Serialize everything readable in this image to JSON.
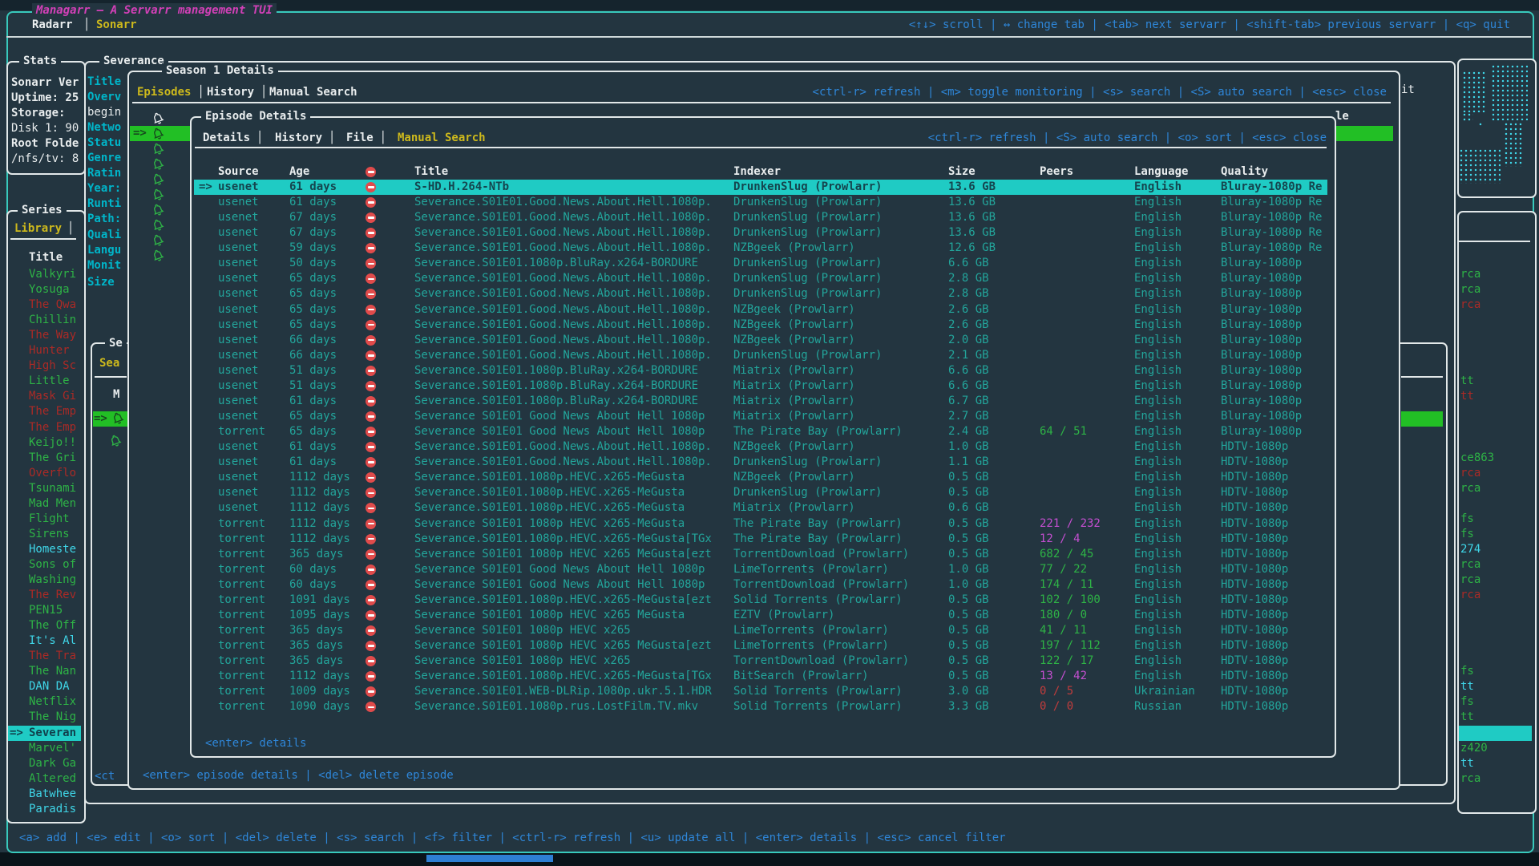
{
  "app": {
    "title": "Managarr — A Servarr management TUI",
    "tabs": [
      {
        "label": "Radarr"
      },
      {
        "label": "Sonarr"
      }
    ],
    "active_tab": "Sonarr",
    "tab_divider": "│",
    "top_keybinds": "<↑↓> scroll | ↔ change tab | <tab> next servarr | <shift-tab> previous servarr | <q> quit",
    "bottom_keybinds": "<a> add | <e> edit | <o> sort | <del> delete | <s> search | <f> filter | <ctrl-r> refresh | <u> update all | <enter> details | <esc> cancel filter"
  },
  "colors": {
    "accent_teal_frame": "#38c9bc",
    "window_border": "#e2e8e9",
    "keybind_blue": "#2e86d8",
    "selected_row_bg": "#1fcbc4",
    "monitored_green": "#2eb346",
    "unmonitored_red": "#ab2a26",
    "highlight_green_bg": "#22bf25",
    "label_cyan": "#00b5c9",
    "tab_yellow": "#cdb91c",
    "title_magenta": "#d340b8",
    "table_text_teal": "#23a59b"
  },
  "stats": {
    "title": "Stats",
    "lines": [
      {
        "text": "Sonarr Ver",
        "bold": true
      },
      {
        "text": "Uptime: 25",
        "bold": true
      },
      {
        "text": "Storage:",
        "bold": true
      },
      {
        "text": "Disk 1: 90",
        "bold": false
      },
      {
        "text": "Root Folde",
        "bold": true
      },
      {
        "text": "/nfs/tv: 8",
        "bold": false
      }
    ]
  },
  "series": {
    "title": "Series",
    "tab": "Library",
    "tab_divider": "│",
    "column_header": "Title",
    "selected_prefix": "=>",
    "selected_index": 30,
    "items": [
      {
        "label": "Valkyri",
        "color": "green"
      },
      {
        "label": "Yosuga",
        "color": "green"
      },
      {
        "label": "The Qwa",
        "color": "red"
      },
      {
        "label": "Chillin",
        "color": "green"
      },
      {
        "label": "The Way",
        "color": "red"
      },
      {
        "label": "Hunter",
        "color": "red"
      },
      {
        "label": "High Sc",
        "color": "red"
      },
      {
        "label": "Little",
        "color": "green"
      },
      {
        "label": "Mask Gi",
        "color": "red"
      },
      {
        "label": "The Emp",
        "color": "red"
      },
      {
        "label": "The Emp",
        "color": "red"
      },
      {
        "label": "Keijo!!",
        "color": "green"
      },
      {
        "label": "The Gri",
        "color": "green"
      },
      {
        "label": "Overflo",
        "color": "red"
      },
      {
        "label": "Tsunami",
        "color": "green"
      },
      {
        "label": "Mad Men",
        "color": "green"
      },
      {
        "label": "Flight",
        "color": "green"
      },
      {
        "label": "Sirens",
        "color": "green"
      },
      {
        "label": "Homeste",
        "color": "cyan"
      },
      {
        "label": "Sons of",
        "color": "green"
      },
      {
        "label": "Washing",
        "color": "green"
      },
      {
        "label": "The Rev",
        "color": "red"
      },
      {
        "label": "PEN15",
        "color": "green"
      },
      {
        "label": "The Off",
        "color": "green"
      },
      {
        "label": "It's Al",
        "color": "cyan"
      },
      {
        "label": "The Tra",
        "color": "red"
      },
      {
        "label": "The Nan",
        "color": "green"
      },
      {
        "label": "DAN DA",
        "color": "cyan"
      },
      {
        "label": "Netflix",
        "color": "green"
      },
      {
        "label": "The Nig",
        "color": "green"
      },
      {
        "label": "Severan",
        "color": "selected"
      },
      {
        "label": "Marvel'",
        "color": "green"
      },
      {
        "label": "Dark Ga",
        "color": "green"
      },
      {
        "label": "Altered",
        "color": "green"
      },
      {
        "label": "Batwhee",
        "color": "cyan"
      },
      {
        "label": "Paradis",
        "color": "cyan"
      }
    ]
  },
  "library_fragments": {
    "note": "right-edge slivers of the underlying library table",
    "selected_bar_index": 30,
    "rows": [
      {
        "k": 0,
        "text": "rca",
        "color": "green"
      },
      {
        "k": 1,
        "text": "rca",
        "color": "green"
      },
      {
        "k": 2,
        "text": "rca",
        "color": "red"
      },
      {
        "k": 7,
        "text": "tt",
        "color": "green"
      },
      {
        "k": 8,
        "text": "tt",
        "color": "red"
      },
      {
        "k": 12,
        "text": "ce863",
        "color": "green"
      },
      {
        "k": 13,
        "text": "rca",
        "color": "red"
      },
      {
        "k": 14,
        "text": "rca",
        "color": "green"
      },
      {
        "k": 16,
        "text": "fs",
        "color": "green"
      },
      {
        "k": 17,
        "text": "fs",
        "color": "green"
      },
      {
        "k": 18,
        "text": "274",
        "color": "cyan"
      },
      {
        "k": 19,
        "text": "rca",
        "color": "green"
      },
      {
        "k": 20,
        "text": "rca",
        "color": "green"
      },
      {
        "k": 21,
        "text": "rca",
        "color": "red"
      },
      {
        "k": 26,
        "text": "fs",
        "color": "green"
      },
      {
        "k": 27,
        "text": "tt",
        "color": "cyan"
      },
      {
        "k": 28,
        "text": "fs",
        "color": "green"
      },
      {
        "k": 29,
        "text": "tt",
        "color": "green"
      },
      {
        "k": 31,
        "text": "z420",
        "color": "green"
      },
      {
        "k": 32,
        "text": "tt",
        "color": "cyan"
      },
      {
        "k": 33,
        "text": "rca",
        "color": "green"
      }
    ]
  },
  "severance": {
    "title": "Severance",
    "fields": [
      {
        "text": "Title",
        "style": "cyan"
      },
      {
        "text": "Overv",
        "style": "cyan"
      },
      {
        "text": "begin",
        "style": "white"
      },
      {
        "text": "Netwo",
        "style": "cyan"
      },
      {
        "text": "Statu",
        "style": "cyan"
      },
      {
        "text": "Genre",
        "style": "cyan"
      },
      {
        "text": "Ratin",
        "style": "cyan"
      },
      {
        "text": "Year:",
        "style": "cyan"
      },
      {
        "text": "Runti",
        "style": "cyan"
      },
      {
        "text": "Path:",
        "style": "cyan"
      },
      {
        "text": "Quali",
        "style": "cyan"
      },
      {
        "text": "Langu",
        "style": "cyan"
      },
      {
        "text": "Monit",
        "style": "cyan"
      },
      {
        "text": "Size",
        "style": "cyan"
      }
    ],
    "overview_fragment": "it",
    "footer_fragment": "<ct",
    "seasons_box": {
      "title_fragment": "Se",
      "tab_fragment": "Sea",
      "header_fragment": "M",
      "selected_prefix": "=>",
      "season_count": 2
    }
  },
  "season1": {
    "title": "Season 1 Details",
    "tabs": [
      "Episodes",
      "History",
      "Manual Search"
    ],
    "active_tab": "Episodes",
    "tab_divider": "│",
    "keybinds": "<ctrl-r> refresh | <m> toggle monitoring | <s> search | <S> auto search | <esc> close",
    "footer": "<enter> episode details | <del> delete episode",
    "title_header_fragment": "le",
    "selected_prefix": "=>",
    "episode_count": 9
  },
  "episode_details": {
    "title": "Episode Details",
    "tabs": [
      "Details",
      "History",
      "File",
      "Manual Search"
    ],
    "active_tab": "Manual Search",
    "tab_divider": "│",
    "keybinds": "<ctrl-r> refresh | <S> auto search | <o> sort | <esc> close",
    "footer": "<enter> details",
    "columns": [
      "Source",
      "Age",
      "Title",
      "Indexer",
      "Size",
      "Peers",
      "Language",
      "Quality"
    ],
    "header_icon": "no-entry-icon",
    "selected_prefix": "=>",
    "selected_index": 0,
    "rows": [
      {
        "source": "usenet",
        "age": "61 days",
        "title": "S-HD.H.264-NTb",
        "indexer": "DrunkenSlug (Prowlarr)",
        "size": "13.6 GB",
        "peers": "",
        "peers_color": "",
        "language": "English",
        "quality": "Bluray-1080p Re"
      },
      {
        "source": "usenet",
        "age": "61 days",
        "title": "Severance.S01E01.Good.News.About.Hell.1080p.",
        "indexer": "DrunkenSlug (Prowlarr)",
        "size": "13.6 GB",
        "peers": "",
        "peers_color": "",
        "language": "English",
        "quality": "Bluray-1080p Re"
      },
      {
        "source": "usenet",
        "age": "67 days",
        "title": "Severance.S01E01.Good.News.About.Hell.1080p.",
        "indexer": "DrunkenSlug (Prowlarr)",
        "size": "13.6 GB",
        "peers": "",
        "peers_color": "",
        "language": "English",
        "quality": "Bluray-1080p Re"
      },
      {
        "source": "usenet",
        "age": "67 days",
        "title": "Severance.S01E01.Good.News.About.Hell.1080p.",
        "indexer": "DrunkenSlug (Prowlarr)",
        "size": "13.6 GB",
        "peers": "",
        "peers_color": "",
        "language": "English",
        "quality": "Bluray-1080p Re"
      },
      {
        "source": "usenet",
        "age": "59 days",
        "title": "Severance.S01E01.Good.News.About.Hell.1080p.",
        "indexer": "NZBgeek (Prowlarr)",
        "size": "12.6 GB",
        "peers": "",
        "peers_color": "",
        "language": "English",
        "quality": "Bluray-1080p Re"
      },
      {
        "source": "usenet",
        "age": "50 days",
        "title": "Severance.S01E01.1080p.BluRay.x264-BORDURE",
        "indexer": "DrunkenSlug (Prowlarr)",
        "size": "6.6 GB",
        "peers": "",
        "peers_color": "",
        "language": "English",
        "quality": "Bluray-1080p"
      },
      {
        "source": "usenet",
        "age": "65 days",
        "title": "Severance.S01E01.Good.News.About.Hell.1080p.",
        "indexer": "DrunkenSlug (Prowlarr)",
        "size": "2.8 GB",
        "peers": "",
        "peers_color": "",
        "language": "English",
        "quality": "Bluray-1080p"
      },
      {
        "source": "usenet",
        "age": "65 days",
        "title": "Severance.S01E01.Good.News.About.Hell.1080p.",
        "indexer": "DrunkenSlug (Prowlarr)",
        "size": "2.8 GB",
        "peers": "",
        "peers_color": "",
        "language": "English",
        "quality": "Bluray-1080p"
      },
      {
        "source": "usenet",
        "age": "65 days",
        "title": "Severance.S01E01.Good.News.About.Hell.1080p.",
        "indexer": "NZBgeek (Prowlarr)",
        "size": "2.6 GB",
        "peers": "",
        "peers_color": "",
        "language": "English",
        "quality": "Bluray-1080p"
      },
      {
        "source": "usenet",
        "age": "65 days",
        "title": "Severance.S01E01.Good.News.About.Hell.1080p.",
        "indexer": "NZBgeek (Prowlarr)",
        "size": "2.6 GB",
        "peers": "",
        "peers_color": "",
        "language": "English",
        "quality": "Bluray-1080p"
      },
      {
        "source": "usenet",
        "age": "66 days",
        "title": "Severance.S01E01.Good.News.About.Hell.1080p.",
        "indexer": "NZBgeek (Prowlarr)",
        "size": "2.0 GB",
        "peers": "",
        "peers_color": "",
        "language": "English",
        "quality": "Bluray-1080p"
      },
      {
        "source": "usenet",
        "age": "66 days",
        "title": "Severance.S01E01.Good.News.About.Hell.1080p.",
        "indexer": "DrunkenSlug (Prowlarr)",
        "size": "2.1 GB",
        "peers": "",
        "peers_color": "",
        "language": "English",
        "quality": "Bluray-1080p"
      },
      {
        "source": "usenet",
        "age": "51 days",
        "title": "Severance.S01E01.1080p.BluRay.x264-BORDURE",
        "indexer": "Miatrix (Prowlarr)",
        "size": "6.6 GB",
        "peers": "",
        "peers_color": "",
        "language": "English",
        "quality": "Bluray-1080p"
      },
      {
        "source": "usenet",
        "age": "51 days",
        "title": "Severance.S01E01.1080p.BluRay.x264-BORDURE",
        "indexer": "Miatrix (Prowlarr)",
        "size": "6.6 GB",
        "peers": "",
        "peers_color": "",
        "language": "English",
        "quality": "Bluray-1080p"
      },
      {
        "source": "usenet",
        "age": "61 days",
        "title": "Severance.S01E01.1080p.BluRay.x264-BORDURE",
        "indexer": "Miatrix (Prowlarr)",
        "size": "6.7 GB",
        "peers": "",
        "peers_color": "",
        "language": "English",
        "quality": "Bluray-1080p"
      },
      {
        "source": "usenet",
        "age": "65 days",
        "title": "Severance S01E01 Good News About Hell 1080p",
        "indexer": "Miatrix (Prowlarr)",
        "size": "2.7 GB",
        "peers": "",
        "peers_color": "",
        "language": "English",
        "quality": "Bluray-1080p"
      },
      {
        "source": "torrent",
        "age": "65 days",
        "title": "Severance S01E01 Good News About Hell 1080p",
        "indexer": "The Pirate Bay (Prowlarr)",
        "size": "2.4 GB",
        "peers": "64 / 51",
        "peers_color": "green",
        "language": "English",
        "quality": "Bluray-1080p"
      },
      {
        "source": "usenet",
        "age": "61 days",
        "title": "Severance.S01E01.Good.News.About.Hell.1080p.",
        "indexer": "NZBgeek (Prowlarr)",
        "size": "1.0 GB",
        "peers": "",
        "peers_color": "",
        "language": "English",
        "quality": "HDTV-1080p"
      },
      {
        "source": "usenet",
        "age": "61 days",
        "title": "Severance.S01E01.Good.News.About.Hell.1080p.",
        "indexer": "DrunkenSlug (Prowlarr)",
        "size": "1.1 GB",
        "peers": "",
        "peers_color": "",
        "language": "English",
        "quality": "HDTV-1080p"
      },
      {
        "source": "usenet",
        "age": "1112 days",
        "title": "Severance.S01E01.1080p.HEVC.x265-MeGusta",
        "indexer": "NZBgeek (Prowlarr)",
        "size": "0.5 GB",
        "peers": "",
        "peers_color": "",
        "language": "English",
        "quality": "HDTV-1080p"
      },
      {
        "source": "usenet",
        "age": "1112 days",
        "title": "Severance.S01E01.1080p.HEVC.x265-MeGusta",
        "indexer": "DrunkenSlug (Prowlarr)",
        "size": "0.5 GB",
        "peers": "",
        "peers_color": "",
        "language": "English",
        "quality": "HDTV-1080p"
      },
      {
        "source": "usenet",
        "age": "1112 days",
        "title": "Severance.S01E01.1080p.HEVC.x265-MeGusta",
        "indexer": "Miatrix (Prowlarr)",
        "size": "0.6 GB",
        "peers": "",
        "peers_color": "",
        "language": "English",
        "quality": "HDTV-1080p"
      },
      {
        "source": "torrent",
        "age": "1112 days",
        "title": "Severance S01E01 1080p HEVC x265-MeGusta",
        "indexer": "The Pirate Bay (Prowlarr)",
        "size": "0.5 GB",
        "peers": "221 / 232",
        "peers_color": "magenta",
        "language": "English",
        "quality": "HDTV-1080p"
      },
      {
        "source": "torrent",
        "age": "1112 days",
        "title": "Severance.S01E01.1080p.HEVC.x265-MeGusta[TGx",
        "indexer": "The Pirate Bay (Prowlarr)",
        "size": "0.5 GB",
        "peers": "12 / 4",
        "peers_color": "magenta",
        "language": "English",
        "quality": "HDTV-1080p"
      },
      {
        "source": "torrent",
        "age": "365 days",
        "title": "Severance S01E01 1080p HEVC x265 MeGusta[ezt",
        "indexer": "TorrentDownload (Prowlarr)",
        "size": "0.5 GB",
        "peers": "682 / 45",
        "peers_color": "green",
        "language": "English",
        "quality": "HDTV-1080p"
      },
      {
        "source": "torrent",
        "age": "60 days",
        "title": "Severance S01E01 Good News About Hell 1080p",
        "indexer": "LimeTorrents (Prowlarr)",
        "size": "1.0 GB",
        "peers": "77 / 22",
        "peers_color": "green",
        "language": "English",
        "quality": "HDTV-1080p"
      },
      {
        "source": "torrent",
        "age": "60 days",
        "title": "Severance S01E01 Good News About Hell 1080p",
        "indexer": "TorrentDownload (Prowlarr)",
        "size": "1.0 GB",
        "peers": "174 / 11",
        "peers_color": "green",
        "language": "English",
        "quality": "HDTV-1080p"
      },
      {
        "source": "torrent",
        "age": "1091 days",
        "title": "Severance.S01E01.1080p.HEVC.x265-MeGusta[ezt",
        "indexer": "Solid Torrents (Prowlarr)",
        "size": "0.5 GB",
        "peers": "102 / 100",
        "peers_color": "green",
        "language": "English",
        "quality": "HDTV-1080p"
      },
      {
        "source": "torrent",
        "age": "1095 days",
        "title": "Severance S01E01 1080p HEVC x265 MeGusta",
        "indexer": "EZTV (Prowlarr)",
        "size": "0.5 GB",
        "peers": "180 / 0",
        "peers_color": "green",
        "language": "English",
        "quality": "HDTV-1080p"
      },
      {
        "source": "torrent",
        "age": "365 days",
        "title": "Severance S01E01 1080p HEVC x265",
        "indexer": "LimeTorrents (Prowlarr)",
        "size": "0.5 GB",
        "peers": "41 / 11",
        "peers_color": "green",
        "language": "English",
        "quality": "HDTV-1080p"
      },
      {
        "source": "torrent",
        "age": "365 days",
        "title": "Severance S01E01 1080p HEVC x265 MeGusta[ezt",
        "indexer": "LimeTorrents (Prowlarr)",
        "size": "0.5 GB",
        "peers": "197 / 112",
        "peers_color": "green",
        "language": "English",
        "quality": "HDTV-1080p"
      },
      {
        "source": "torrent",
        "age": "365 days",
        "title": "Severance S01E01 1080p HEVC x265",
        "indexer": "TorrentDownload (Prowlarr)",
        "size": "0.5 GB",
        "peers": "122 / 17",
        "peers_color": "green",
        "language": "English",
        "quality": "HDTV-1080p"
      },
      {
        "source": "torrent",
        "age": "1112 days",
        "title": "Severance.S01E01.1080p.HEVC.x265-MeGusta[TGx",
        "indexer": "BitSearch (Prowlarr)",
        "size": "0.5 GB",
        "peers": "13 / 42",
        "peers_color": "magenta",
        "language": "English",
        "quality": "HDTV-1080p"
      },
      {
        "source": "torrent",
        "age": "1009 days",
        "title": "Severance.S01E01.WEB-DLRip.1080p.ukr.5.1.HDR",
        "indexer": "Solid Torrents (Prowlarr)",
        "size": "3.0 GB",
        "peers": "0 / 5",
        "peers_color": "red",
        "language": "Ukrainian",
        "quality": "HDTV-1080p"
      },
      {
        "source": "torrent",
        "age": "1090 days",
        "title": "Severance.S01E01.1080p.rus.LostFilm.TV.mkv",
        "indexer": "Solid Torrents (Prowlarr)",
        "size": "3.3 GB",
        "peers": "0 / 0",
        "peers_color": "red",
        "language": "Russian",
        "quality": "HDTV-1080p"
      }
    ]
  }
}
